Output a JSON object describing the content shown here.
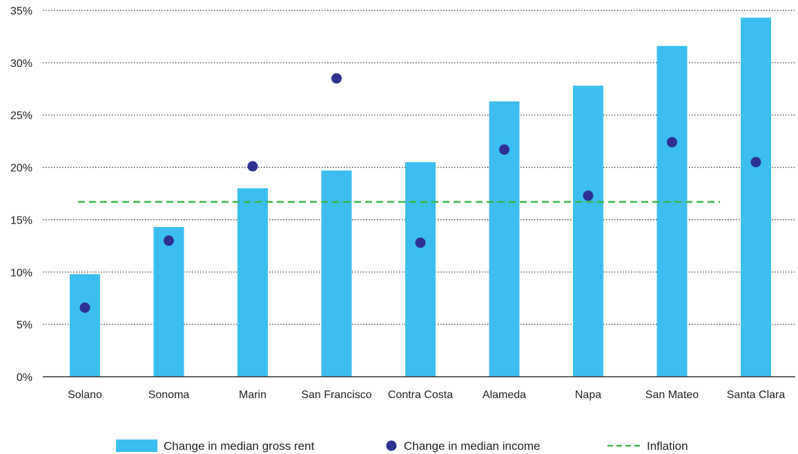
{
  "chart_data": {
    "type": "bar",
    "title": "",
    "xlabel": "",
    "ylabel": "",
    "ylim": [
      0,
      35
    ],
    "y_ticks": [
      0,
      5,
      10,
      15,
      20,
      25,
      30,
      35
    ],
    "y_tick_labels": [
      "0%",
      "5%",
      "10%",
      "15%",
      "20%",
      "25%",
      "30%",
      "35%"
    ],
    "grid": "horizontal-dotted",
    "legend_position": "bottom",
    "categories": [
      "Solano",
      "Sonoma",
      "Marin",
      "San Francisco",
      "Contra Costa",
      "Alameda",
      "Napa",
      "San Mateo",
      "Santa Clara"
    ],
    "series": [
      {
        "name": "Change in median gross rent",
        "kind": "bar",
        "color": "#3cbef0",
        "values": [
          9.8,
          14.3,
          18.0,
          19.7,
          20.5,
          26.3,
          27.8,
          31.6,
          34.3
        ]
      },
      {
        "name": "Change in median income",
        "kind": "point",
        "color": "#2e3192",
        "values": [
          6.6,
          13.0,
          20.1,
          28.5,
          12.8,
          21.7,
          17.3,
          22.4,
          20.5
        ]
      },
      {
        "name": "Inflation",
        "kind": "reference-line",
        "color": "#3cb54a",
        "value": 16.7
      }
    ]
  }
}
